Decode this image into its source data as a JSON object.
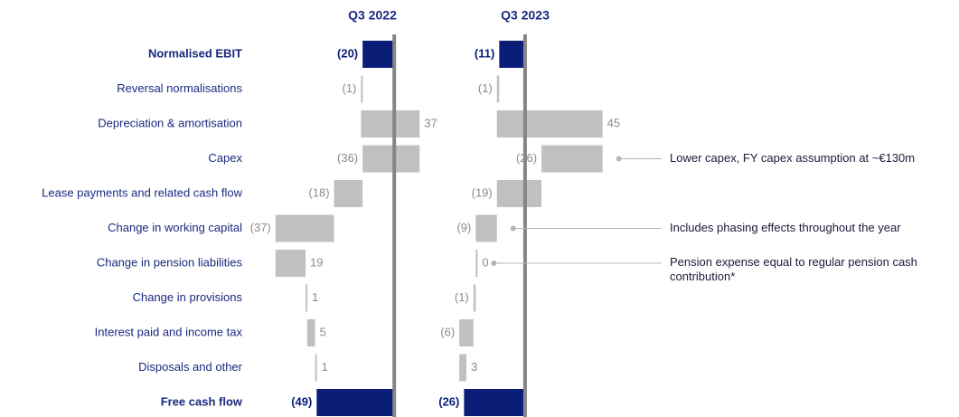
{
  "chart_data": {
    "type": "waterfall",
    "categories": [
      "Normalised EBIT",
      "Reversal normalisations",
      "Depreciation & amortisation",
      "Capex",
      "Lease payments and related cash flow",
      "Change in working capital",
      "Change in pension liabilities",
      "Change in provisions",
      "Interest paid and income tax",
      "Disposals and other",
      "Free cash flow"
    ],
    "kinds": [
      "total",
      "delta",
      "delta",
      "delta",
      "delta",
      "delta",
      "delta",
      "delta",
      "delta",
      "delta",
      "total"
    ],
    "total_color": "#0a1e78",
    "delta_color": "#c0c0c0",
    "axis_color": "#858585",
    "series": [
      {
        "name": "Q3 2022",
        "values": [
          -20,
          -1,
          37,
          -36,
          -18,
          -37,
          19,
          1,
          5,
          1,
          -49
        ],
        "value_labels": [
          "(20)",
          "(1)",
          "37",
          "(36)",
          "(18)",
          "(37)",
          "19",
          "1",
          "5",
          "1",
          "(49)"
        ],
        "xlim": [
          -80,
          25
        ]
      },
      {
        "name": "Q3 2023",
        "values": [
          -11,
          -1,
          45,
          -26,
          -19,
          -9,
          0,
          -1,
          -6,
          3,
          -26
        ],
        "value_labels": [
          "(11)",
          "(1)",
          "45",
          "(26)",
          "(19)",
          "(9)",
          "0",
          "(1)",
          "(6)",
          "3",
          "(26)"
        ],
        "xlim": [
          -35,
          42
        ]
      }
    ],
    "annotations": [
      {
        "category": "Capex",
        "text": "Lower capex, FY capex assumption at ~€130m"
      },
      {
        "category": "Change in working capital",
        "text": "Includes phasing effects throughout the year"
      },
      {
        "category": "Change in pension liabilities",
        "text": "Pension expense equal to regular pension cash contribution*"
      }
    ]
  }
}
